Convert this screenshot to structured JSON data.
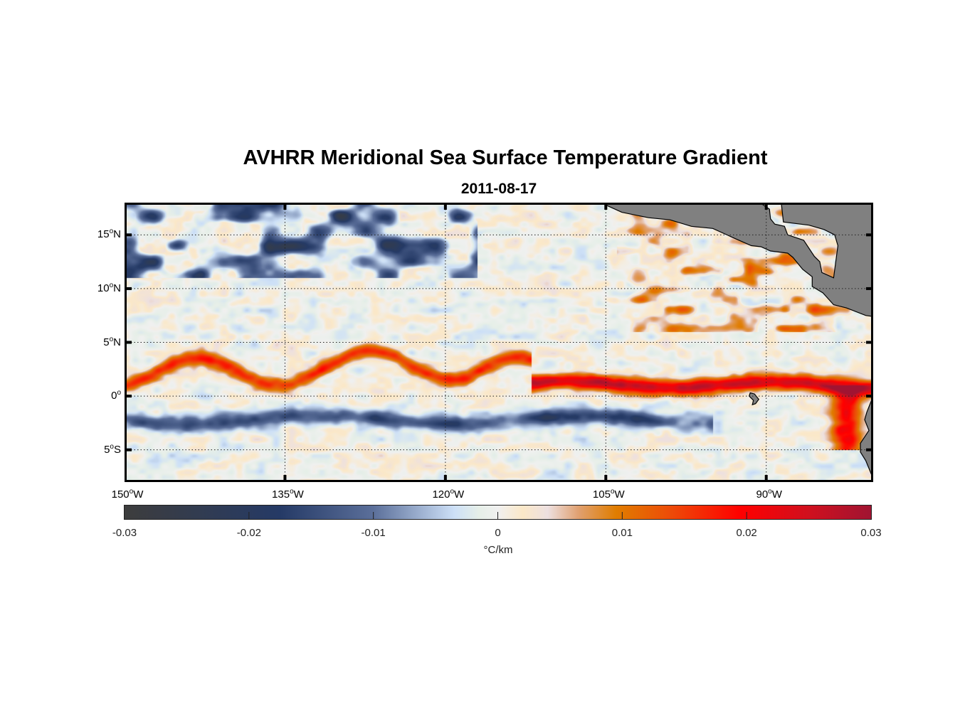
{
  "title": "AVHRR Meridional Sea Surface Temperature Gradient",
  "subtitle": "2011-08-17",
  "chart_data": {
    "type": "heatmap",
    "title": "AVHRR Meridional Sea Surface Temperature Gradient",
    "subtitle": "2011-08-17",
    "xlabel": "",
    "ylabel": "",
    "xlim": [
      -150,
      -80
    ],
    "ylim": [
      -8,
      18
    ],
    "grid": true,
    "x_ticks": [
      {
        "value": -150,
        "deg": "150",
        "hemi": "W"
      },
      {
        "value": -135,
        "deg": "135",
        "hemi": "W"
      },
      {
        "value": -120,
        "deg": "120",
        "hemi": "W"
      },
      {
        "value": -105,
        "deg": "105",
        "hemi": "W"
      },
      {
        "value": -90,
        "deg": "90",
        "hemi": "W"
      }
    ],
    "y_ticks": [
      {
        "value": 15,
        "deg": "15",
        "hemi": "N"
      },
      {
        "value": 10,
        "deg": "10",
        "hemi": "N"
      },
      {
        "value": 5,
        "deg": "5",
        "hemi": "N"
      },
      {
        "value": 0,
        "deg": "0",
        "hemi": ""
      },
      {
        "value": -5,
        "deg": "5",
        "hemi": "S"
      }
    ],
    "colorbar": {
      "label": "°C/km",
      "range": [
        -0.03,
        0.03
      ],
      "ticks": [
        "-0.03",
        "-0.02",
        "-0.01",
        "0",
        "0.01",
        "0.02",
        "0.03"
      ],
      "tick_values": [
        -0.03,
        -0.02,
        -0.01,
        0,
        0.01,
        0.02,
        0.03
      ],
      "orientation": "horizontal",
      "placement": "bottom",
      "colormap": [
        {
          "v": -0.03,
          "c": "#3d3d3d"
        },
        {
          "v": -0.0175,
          "c": "#253a66"
        },
        {
          "v": -0.01,
          "c": "#5b6f9a"
        },
        {
          "v": -0.0035,
          "c": "#cde0f7"
        },
        {
          "v": -0.0015,
          "c": "#e6efe8"
        },
        {
          "v": 0,
          "c": "#f0f0f0"
        },
        {
          "v": 0.002,
          "c": "#fbe8c8"
        },
        {
          "v": 0.004,
          "c": "#ede0e0"
        },
        {
          "v": 0.0065,
          "c": "#e0a070"
        },
        {
          "v": 0.0095,
          "c": "#e07d00"
        },
        {
          "v": 0.014,
          "c": "#ed4a08"
        },
        {
          "v": 0.0195,
          "c": "#ff0000"
        },
        {
          "v": 0.025,
          "c": "#d0101e"
        },
        {
          "v": 0.03,
          "c": "#a01432"
        }
      ]
    },
    "features": [
      {
        "name": "equatorial-front-wave",
        "sign": "positive",
        "description": "Wavy warm front (tropical instability waves) along ~0-6N from 150W to 80W, strongest ~0.02-0.03 east of 115W near 1N"
      },
      {
        "name": "south-equatorial-band",
        "sign": "negative",
        "description": "Negative gradient band at ~1-3S from 150W to 95W, reaching about -0.02"
      },
      {
        "name": "north-pacific-negative",
        "sign": "negative",
        "description": "Patchy negative values 12-18N between 145W and 118W"
      },
      {
        "name": "costa-rica-dome",
        "sign": "positive",
        "description": "Positive patches near 8-14N along the Central American coast"
      }
    ],
    "land": {
      "color": "#808080",
      "regions": [
        "Central America",
        "South America coast",
        "Galapagos Islands"
      ]
    }
  }
}
